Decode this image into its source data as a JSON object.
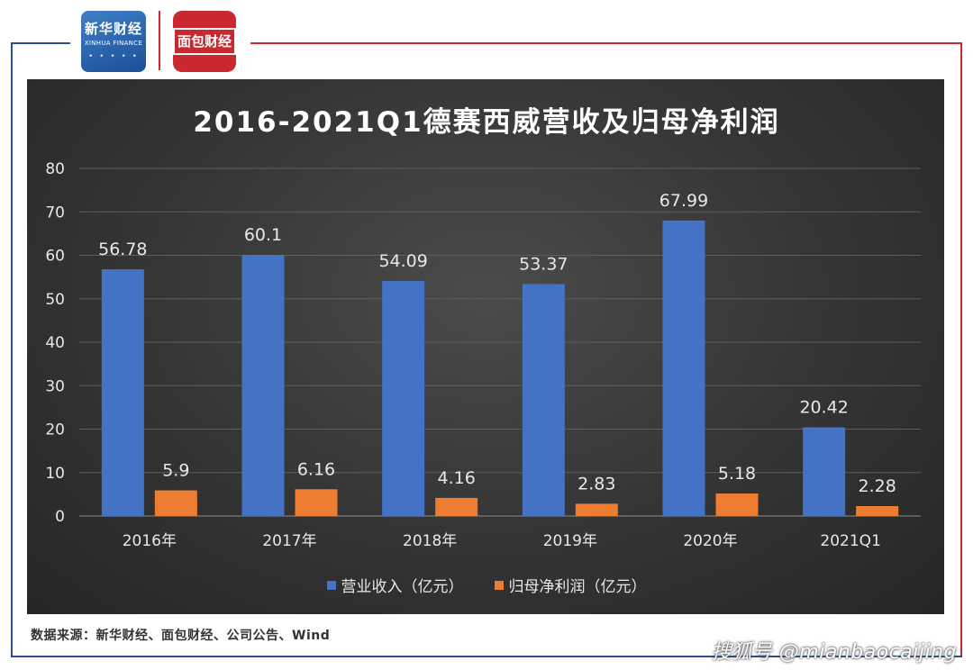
{
  "logos": {
    "xinhua_cn": "新华财经",
    "xinhua_en": "XINHUA FINANCE",
    "mianbao": "面包财经"
  },
  "source_text": "数据来源：新华财经、面包财经、公司公告、Wind",
  "watermark_text": "搜狐号 @mianbaocaijing",
  "colors": {
    "revenue": "#4472c4",
    "profit": "#ed7d31",
    "panel": "#333333",
    "text": "#e8e8e8"
  },
  "chart_data": {
    "type": "bar",
    "title": "2016-2021Q1德赛西威营收及归母净利润",
    "categories": [
      "2016年",
      "2017年",
      "2018年",
      "2019年",
      "2020年",
      "2021Q1"
    ],
    "series": [
      {
        "name": "营业收入（亿元）",
        "values": [
          56.78,
          60.1,
          54.09,
          53.37,
          67.99,
          20.42
        ],
        "labels": [
          "56.78",
          "60.1",
          "54.09",
          "53.37",
          "67.99",
          "20.42"
        ]
      },
      {
        "name": "归母净利润（亿元）",
        "values": [
          5.9,
          6.16,
          4.16,
          2.83,
          5.18,
          2.28
        ],
        "labels": [
          "5.9",
          "6.16",
          "4.16",
          "2.83",
          "5.18",
          "2.28"
        ]
      }
    ],
    "yticks": [
      "0",
      "10",
      "20",
      "30",
      "40",
      "50",
      "60",
      "70",
      "80"
    ],
    "ylim": [
      0,
      80
    ],
    "grid": true,
    "legend_position": "bottom"
  }
}
